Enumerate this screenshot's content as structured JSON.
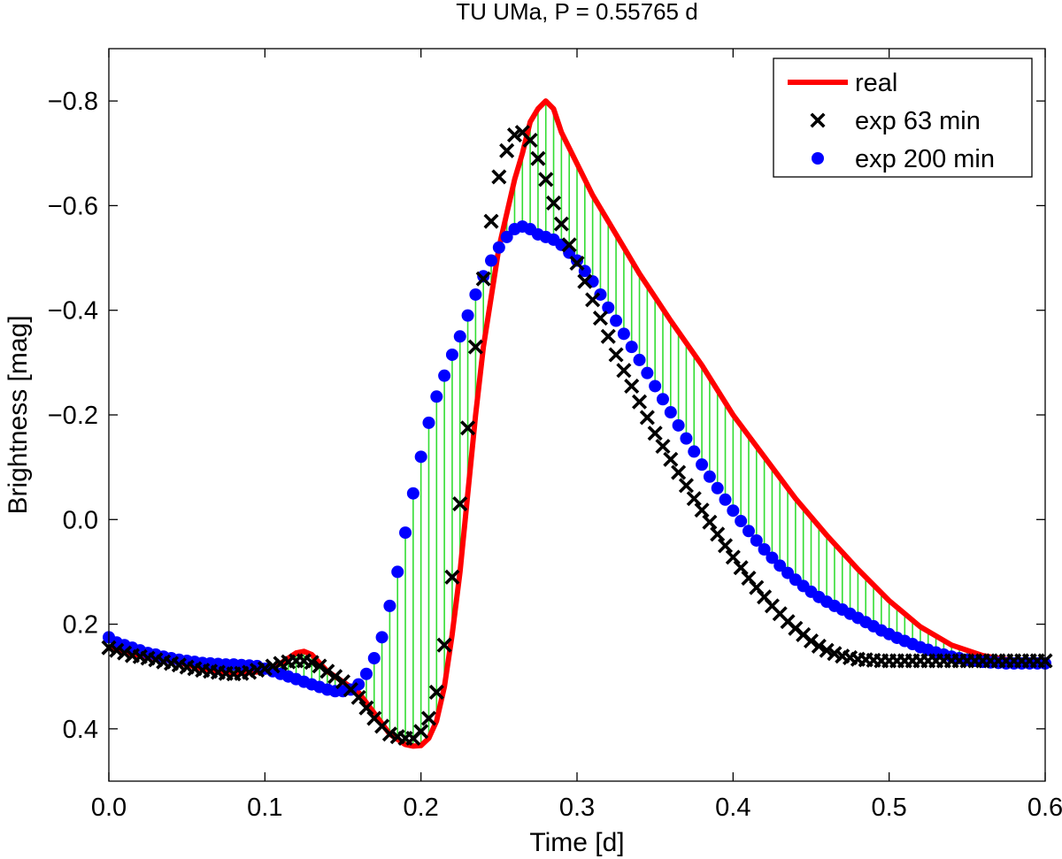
{
  "chart_data": {
    "type": "line",
    "title": "TU UMa, P = 0.55765 d",
    "xlabel": "Time [d]",
    "ylabel": "Brightness [mag]",
    "xlim": [
      0,
      0.6
    ],
    "ylim": [
      0.5,
      -0.9
    ],
    "y_axis_reversed": true,
    "xticks": [
      0.0,
      0.1,
      0.2,
      0.3,
      0.4,
      0.5,
      0.6
    ],
    "xtick_labels": [
      "0.0",
      "0.1",
      "0.2",
      "0.3",
      "0.4",
      "0.5",
      "0.6"
    ],
    "yticks": [
      -0.8,
      -0.6,
      -0.4,
      -0.2,
      0.0,
      0.2,
      0.4
    ],
    "ytick_labels": [
      "−0.8",
      "−0.6",
      "−0.4",
      "−0.2",
      "0.0",
      "0.2",
      "0.4"
    ],
    "grid": false,
    "legend_position": "top-right",
    "colors": {
      "real": "#ff0000",
      "exp63": "#000000",
      "exp200": "#0000ff",
      "residual": "#33dd33"
    },
    "series": [
      {
        "name": "real",
        "style": "line",
        "x": [
          0.0,
          0.02,
          0.04,
          0.06,
          0.08,
          0.1,
          0.11,
          0.12,
          0.125,
          0.13,
          0.14,
          0.15,
          0.16,
          0.17,
          0.18,
          0.19,
          0.195,
          0.2,
          0.205,
          0.21,
          0.215,
          0.22,
          0.225,
          0.23,
          0.235,
          0.24,
          0.25,
          0.26,
          0.265,
          0.27,
          0.275,
          0.28,
          0.285,
          0.29,
          0.3,
          0.31,
          0.32,
          0.33,
          0.34,
          0.35,
          0.36,
          0.38,
          0.4,
          0.42,
          0.44,
          0.46,
          0.48,
          0.5,
          0.52,
          0.54,
          0.56,
          0.58,
          0.6
        ],
        "y": [
          0.245,
          0.26,
          0.27,
          0.285,
          0.295,
          0.29,
          0.275,
          0.255,
          0.252,
          0.258,
          0.29,
          0.31,
          0.33,
          0.37,
          0.41,
          0.43,
          0.433,
          0.432,
          0.418,
          0.385,
          0.32,
          0.22,
          0.1,
          -0.05,
          -0.2,
          -0.33,
          -0.52,
          -0.65,
          -0.7,
          -0.76,
          -0.785,
          -0.8,
          -0.785,
          -0.74,
          -0.68,
          -0.62,
          -0.57,
          -0.52,
          -0.47,
          -0.425,
          -0.38,
          -0.295,
          -0.2,
          -0.12,
          -0.04,
          0.03,
          0.095,
          0.155,
          0.205,
          0.24,
          0.26,
          0.27,
          0.275
        ]
      },
      {
        "name": "exp 63 min",
        "style": "x-marker",
        "x": [
          0.0,
          0.005,
          0.01,
          0.015,
          0.02,
          0.025,
          0.03,
          0.035,
          0.04,
          0.045,
          0.05,
          0.055,
          0.06,
          0.065,
          0.07,
          0.075,
          0.08,
          0.085,
          0.09,
          0.095,
          0.1,
          0.105,
          0.11,
          0.115,
          0.12,
          0.125,
          0.13,
          0.135,
          0.14,
          0.145,
          0.15,
          0.155,
          0.16,
          0.165,
          0.17,
          0.175,
          0.18,
          0.185,
          0.19,
          0.195,
          0.2,
          0.205,
          0.21,
          0.215,
          0.22,
          0.225,
          0.23,
          0.235,
          0.24,
          0.245,
          0.25,
          0.255,
          0.26,
          0.265,
          0.27,
          0.275,
          0.28,
          0.285,
          0.29,
          0.295,
          0.3,
          0.305,
          0.31,
          0.315,
          0.32,
          0.325,
          0.33,
          0.335,
          0.34,
          0.345,
          0.35,
          0.355,
          0.36,
          0.365,
          0.37,
          0.375,
          0.38,
          0.385,
          0.39,
          0.395,
          0.4,
          0.405,
          0.41,
          0.415,
          0.42,
          0.425,
          0.43,
          0.435,
          0.44,
          0.445,
          0.45,
          0.455,
          0.46,
          0.465,
          0.47,
          0.475,
          0.48,
          0.485,
          0.49,
          0.495,
          0.5,
          0.505,
          0.51,
          0.515,
          0.52,
          0.525,
          0.53,
          0.535,
          0.54,
          0.545,
          0.55,
          0.555,
          0.56,
          0.565,
          0.57,
          0.575,
          0.58,
          0.585,
          0.59,
          0.595,
          0.6
        ],
        "y": [
          0.245,
          0.25,
          0.255,
          0.26,
          0.262,
          0.265,
          0.268,
          0.272,
          0.275,
          0.278,
          0.282,
          0.285,
          0.288,
          0.29,
          0.292,
          0.294,
          0.295,
          0.294,
          0.292,
          0.288,
          0.285,
          0.28,
          0.275,
          0.272,
          0.27,
          0.27,
          0.273,
          0.28,
          0.29,
          0.3,
          0.31,
          0.325,
          0.34,
          0.36,
          0.38,
          0.395,
          0.41,
          0.415,
          0.418,
          0.418,
          0.405,
          0.38,
          0.33,
          0.24,
          0.11,
          -0.03,
          -0.175,
          -0.33,
          -0.46,
          -0.57,
          -0.655,
          -0.705,
          -0.735,
          -0.74,
          -0.725,
          -0.69,
          -0.65,
          -0.605,
          -0.565,
          -0.525,
          -0.49,
          -0.455,
          -0.42,
          -0.385,
          -0.35,
          -0.315,
          -0.285,
          -0.255,
          -0.225,
          -0.195,
          -0.165,
          -0.14,
          -0.115,
          -0.09,
          -0.065,
          -0.04,
          -0.018,
          0.005,
          0.028,
          0.05,
          0.072,
          0.092,
          0.112,
          0.13,
          0.148,
          0.165,
          0.18,
          0.195,
          0.208,
          0.22,
          0.232,
          0.242,
          0.25,
          0.256,
          0.261,
          0.264,
          0.267,
          0.268,
          0.269,
          0.27,
          0.27,
          0.27,
          0.27,
          0.27,
          0.27,
          0.27,
          0.27,
          0.27,
          0.27,
          0.27,
          0.27,
          0.27,
          0.27,
          0.27,
          0.27,
          0.27,
          0.27,
          0.27,
          0.27,
          0.27,
          0.27
        ]
      },
      {
        "name": "exp 200 min",
        "style": "dot-marker",
        "x": [
          0.0,
          0.005,
          0.01,
          0.015,
          0.02,
          0.025,
          0.03,
          0.035,
          0.04,
          0.045,
          0.05,
          0.055,
          0.06,
          0.065,
          0.07,
          0.075,
          0.08,
          0.085,
          0.09,
          0.095,
          0.1,
          0.105,
          0.11,
          0.115,
          0.12,
          0.125,
          0.13,
          0.135,
          0.14,
          0.145,
          0.15,
          0.155,
          0.16,
          0.165,
          0.17,
          0.175,
          0.18,
          0.185,
          0.19,
          0.195,
          0.2,
          0.205,
          0.21,
          0.215,
          0.22,
          0.225,
          0.23,
          0.235,
          0.24,
          0.245,
          0.25,
          0.255,
          0.26,
          0.265,
          0.27,
          0.275,
          0.28,
          0.285,
          0.29,
          0.295,
          0.3,
          0.305,
          0.31,
          0.315,
          0.32,
          0.325,
          0.33,
          0.335,
          0.34,
          0.345,
          0.35,
          0.355,
          0.36,
          0.365,
          0.37,
          0.375,
          0.38,
          0.385,
          0.39,
          0.395,
          0.4,
          0.405,
          0.41,
          0.415,
          0.42,
          0.425,
          0.43,
          0.435,
          0.44,
          0.445,
          0.45,
          0.455,
          0.46,
          0.465,
          0.47,
          0.475,
          0.48,
          0.485,
          0.49,
          0.495,
          0.5,
          0.505,
          0.51,
          0.515,
          0.52,
          0.525,
          0.53,
          0.535,
          0.54,
          0.545,
          0.55,
          0.555,
          0.56,
          0.565,
          0.57,
          0.575,
          0.58,
          0.585,
          0.59,
          0.595,
          0.6
        ],
        "y": [
          0.225,
          0.235,
          0.24,
          0.245,
          0.25,
          0.255,
          0.258,
          0.262,
          0.265,
          0.268,
          0.27,
          0.272,
          0.274,
          0.275,
          0.276,
          0.277,
          0.277,
          0.278,
          0.279,
          0.28,
          0.285,
          0.29,
          0.295,
          0.3,
          0.305,
          0.31,
          0.315,
          0.32,
          0.325,
          0.328,
          0.328,
          0.325,
          0.315,
          0.295,
          0.265,
          0.225,
          0.165,
          0.1,
          0.025,
          -0.05,
          -0.12,
          -0.185,
          -0.235,
          -0.275,
          -0.315,
          -0.35,
          -0.39,
          -0.43,
          -0.465,
          -0.495,
          -0.52,
          -0.54,
          -0.555,
          -0.56,
          -0.555,
          -0.545,
          -0.54,
          -0.535,
          -0.525,
          -0.51,
          -0.495,
          -0.475,
          -0.455,
          -0.43,
          -0.405,
          -0.38,
          -0.355,
          -0.33,
          -0.305,
          -0.28,
          -0.255,
          -0.23,
          -0.205,
          -0.18,
          -0.155,
          -0.13,
          -0.105,
          -0.082,
          -0.06,
          -0.038,
          -0.017,
          0.003,
          0.022,
          0.04,
          0.057,
          0.073,
          0.088,
          0.102,
          0.115,
          0.127,
          0.138,
          0.148,
          0.157,
          0.165,
          0.172,
          0.18,
          0.188,
          0.196,
          0.204,
          0.212,
          0.219,
          0.226,
          0.232,
          0.238,
          0.244,
          0.249,
          0.254,
          0.258,
          0.262,
          0.265,
          0.268,
          0.27,
          0.272,
          0.273,
          0.274,
          0.275,
          0.275,
          0.275,
          0.275,
          0.275,
          0.275
        ]
      }
    ],
    "legend": [
      {
        "label": "real",
        "style": "line"
      },
      {
        "label": "exp 63 min",
        "style": "x-marker"
      },
      {
        "label": "exp 200 min",
        "style": "dot-marker"
      }
    ]
  }
}
